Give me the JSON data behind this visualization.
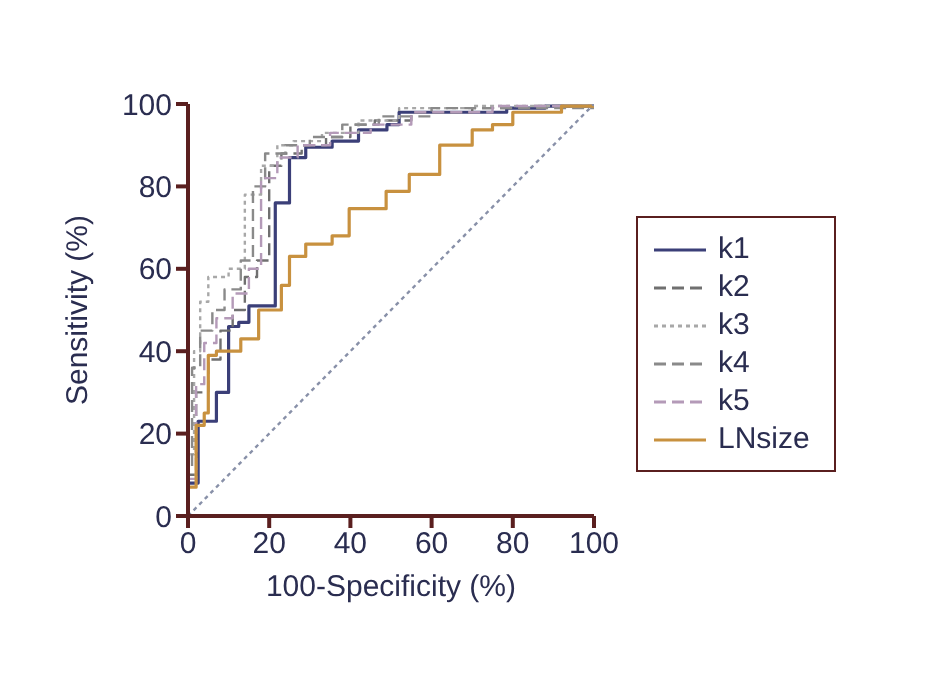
{
  "chart_data": {
    "type": "step",
    "xlabel": "100-Specificity (%)",
    "ylabel": "Sensitivity (%)",
    "xlim": [
      0,
      100
    ],
    "ylim": [
      0,
      100
    ],
    "xticks": [
      0,
      20,
      40,
      60,
      80,
      100
    ],
    "yticks": [
      0,
      20,
      40,
      60,
      80,
      100
    ],
    "grid": false,
    "legend": "right",
    "marker": "none",
    "series": [
      {
        "name": "k1",
        "color": "#3b3f78",
        "line_style": "solid",
        "x": [
          0,
          0,
          2.5,
          7,
          10,
          12.5,
          15,
          21.5,
          25,
          29,
          35.5,
          42,
          49,
          52,
          78.5,
          88,
          100
        ],
        "values": [
          0,
          8,
          23,
          30,
          46,
          47,
          51,
          76,
          87,
          89.5,
          91,
          93.7,
          95,
          98,
          99,
          99.5,
          100
        ]
      },
      {
        "name": "k2",
        "color": "#707070",
        "line_style": "dashed",
        "x": [
          0,
          0,
          2,
          5,
          8,
          11,
          14,
          17,
          20,
          23,
          28,
          34,
          40,
          46,
          55,
          70,
          85,
          100
        ],
        "values": [
          0,
          10,
          30,
          38,
          45,
          50,
          58,
          62,
          85,
          88,
          90,
          92,
          95,
          96,
          98,
          99,
          99.5,
          100
        ]
      },
      {
        "name": "k3",
        "color": "#a8a8a8",
        "line_style": "dotted",
        "x": [
          0,
          0,
          1.5,
          3,
          5,
          10,
          14,
          18,
          22,
          26,
          33,
          42,
          52,
          70,
          100
        ],
        "values": [
          0,
          15,
          40,
          52,
          58,
          60,
          78,
          85,
          90,
          91,
          93,
          96,
          99,
          99.5,
          100
        ]
      },
      {
        "name": "k4",
        "color": "#8a8a8a",
        "line_style": "dashed",
        "x": [
          0,
          0,
          1,
          3,
          6,
          9,
          13,
          16,
          19,
          24,
          30,
          38,
          47,
          60,
          100
        ],
        "values": [
          0,
          12,
          36,
          45,
          50,
          55,
          62,
          80,
          88,
          90,
          92,
          95,
          97,
          99,
          100
        ]
      },
      {
        "name": "k5",
        "color": "#b49ab8",
        "line_style": "dashed",
        "x": [
          0,
          0,
          2,
          4,
          7,
          11,
          15,
          18,
          22,
          27,
          35,
          45,
          55,
          75,
          100
        ],
        "values": [
          0,
          9,
          32,
          42,
          48,
          54,
          60,
          82,
          87,
          90,
          93,
          95,
          98,
          99.5,
          100
        ]
      },
      {
        "name": "LNsize",
        "color": "#c8913f",
        "line_style": "solid",
        "x": [
          0,
          0,
          2,
          4,
          5,
          7,
          13,
          17.4,
          17.4,
          23,
          25,
          29,
          35.5,
          39.7,
          44,
          48.8,
          54.5,
          62,
          65,
          70,
          75,
          80,
          92,
          100
        ],
        "values": [
          0,
          7,
          22,
          25,
          39,
          40,
          43,
          43,
          50,
          56,
          63,
          66,
          68,
          74.6,
          74.6,
          78.8,
          82.9,
          90,
          90,
          93.7,
          95,
          98,
          99.5,
          100
        ]
      },
      {
        "type": "line",
        "color": "#8890a8",
        "line_style": "dotted",
        "x": [
          0,
          100
        ],
        "values": [
          0,
          100
        ]
      }
    ]
  }
}
